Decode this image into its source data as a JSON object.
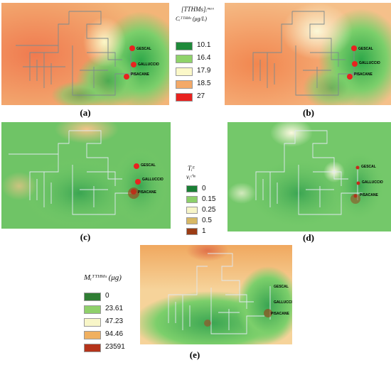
{
  "panels": [
    {
      "id": "a",
      "label": "(a)"
    },
    {
      "id": "b",
      "label": "(b)"
    },
    {
      "id": "c",
      "label": "(c)"
    },
    {
      "id": "d",
      "label": "(d)"
    },
    {
      "id": "e",
      "label": "(e)"
    }
  ],
  "sites": [
    "GESCAL",
    "GALLUCCIO",
    "PISACANE"
  ],
  "legend_concentration": {
    "title_line1": "[TTHMs]ᵢᵐᵃˣ",
    "title_line2": "Cᵢᵀᵀᴴᴹˢ (μg/L)",
    "items": [
      {
        "value": "10.1",
        "color": "#1f8a3a"
      },
      {
        "value": "16.4",
        "color": "#8fd36a"
      },
      {
        "value": "17.9",
        "color": "#fbf8c8"
      },
      {
        "value": "18.5",
        "color": "#f3a968"
      },
      {
        "value": "27",
        "color": "#e8221f"
      }
    ]
  },
  "legend_ratio": {
    "title_line1": "Tᵢᴱ",
    "title_line2": "vᵢᶜ'ⁿ",
    "items": [
      {
        "value": "0",
        "color": "#1a7f35"
      },
      {
        "value": "0.15",
        "color": "#8ccf6a"
      },
      {
        "value": "0.25",
        "color": "#f7f5c8"
      },
      {
        "value": "0.5",
        "color": "#d7b865"
      },
      {
        "value": "1",
        "color": "#9b3c15"
      }
    ]
  },
  "legend_mass": {
    "title": "Mᵢᵀᵀᴴᴹˢ (μg)",
    "items": [
      {
        "value": "0",
        "color": "#2f7d33"
      },
      {
        "value": "23.61",
        "color": "#8fd06a"
      },
      {
        "value": "47.23",
        "color": "#f8f6c8"
      },
      {
        "value": "94.46",
        "color": "#f0b060"
      },
      {
        "value": "23591",
        "color": "#b5331a"
      }
    ]
  }
}
